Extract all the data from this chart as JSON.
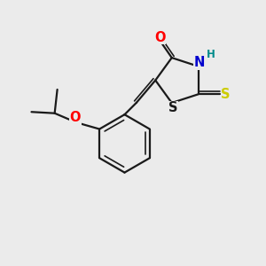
{
  "background_color": "#ebebeb",
  "bond_color": "#1a1a1a",
  "atom_colors": {
    "O": "#ff0000",
    "N": "#0000cd",
    "S_thio": "#cccc00",
    "S_ring": "#1a1a1a",
    "H": "#008b8b",
    "C": "#1a1a1a"
  },
  "figsize": [
    3.0,
    3.0
  ],
  "dpi": 100
}
